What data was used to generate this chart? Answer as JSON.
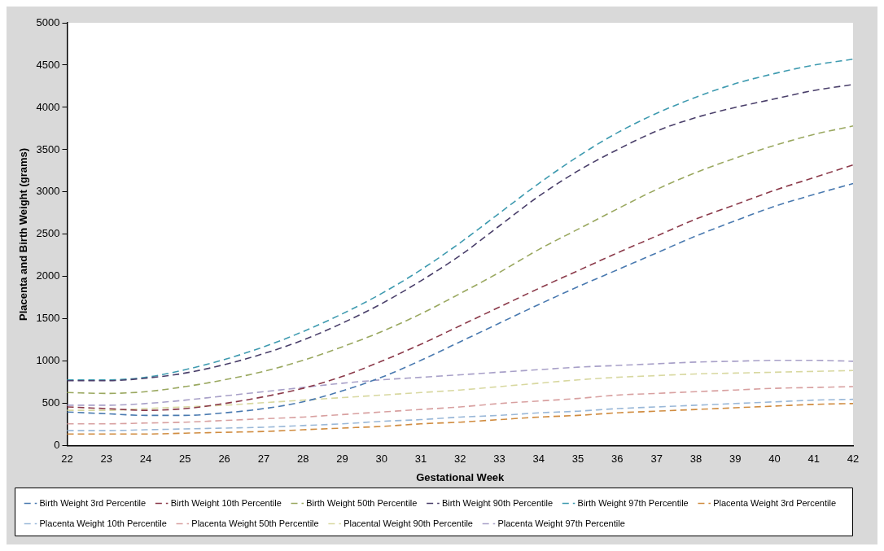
{
  "chart_data": {
    "type": "line",
    "xlabel": "Gestational Week",
    "ylabel": "Placenta and Birth Weight (grams)",
    "categories": [
      "22",
      "23",
      "24",
      "25",
      "26",
      "27",
      "28",
      "29",
      "30",
      "31",
      "32",
      "33",
      "34",
      "35",
      "36",
      "37",
      "38",
      "39",
      "40",
      "41",
      "42"
    ],
    "ylim": [
      0,
      5000
    ],
    "yticks": [
      0,
      500,
      1000,
      1500,
      2000,
      2500,
      3000,
      3500,
      4000,
      4500,
      5000
    ],
    "grid": false,
    "legend": "bottom",
    "marker": "none",
    "line_style": "dashed",
    "series": [
      {
        "name": "Birth Weight 3rd Percentile",
        "color": "#4a7ab0",
        "values": [
          400,
          380,
          360,
          360,
          390,
          440,
          520,
          650,
          810,
          1010,
          1230,
          1450,
          1670,
          1880,
          2080,
          2280,
          2480,
          2660,
          2830,
          2970,
          3100
        ]
      },
      {
        "name": "Birth Weight 10th Percentile",
        "color": "#8b3a4a",
        "values": [
          460,
          440,
          420,
          440,
          500,
          580,
          680,
          820,
          1000,
          1200,
          1420,
          1640,
          1860,
          2070,
          2280,
          2480,
          2680,
          2850,
          3020,
          3170,
          3320
        ]
      },
      {
        "name": "Birth Weight 50th Percentile",
        "color": "#9aa860",
        "values": [
          630,
          620,
          640,
          700,
          780,
          880,
          1010,
          1170,
          1350,
          1560,
          1800,
          2050,
          2320,
          2560,
          2800,
          3030,
          3230,
          3400,
          3550,
          3680,
          3780
        ]
      },
      {
        "name": "Birth Weight 90th Percentile",
        "color": "#4a3f6a",
        "values": [
          770,
          770,
          800,
          860,
          960,
          1090,
          1250,
          1450,
          1680,
          1950,
          2250,
          2600,
          2950,
          3250,
          3500,
          3720,
          3880,
          4000,
          4100,
          4200,
          4270
        ]
      },
      {
        "name": "Birth Weight 97th Percentile",
        "color": "#3f9bb0",
        "values": [
          780,
          780,
          810,
          900,
          1020,
          1170,
          1350,
          1560,
          1800,
          2080,
          2400,
          2750,
          3100,
          3420,
          3700,
          3930,
          4120,
          4280,
          4400,
          4500,
          4570
        ]
      },
      {
        "name": "Placenta Weight 3rd Percentile",
        "color": "#d08c40",
        "values": [
          140,
          140,
          140,
          150,
          160,
          170,
          190,
          210,
          230,
          260,
          280,
          310,
          340,
          360,
          390,
          410,
          430,
          450,
          470,
          490,
          500
        ]
      },
      {
        "name": "Placenta Weight 10th Percentile",
        "color": "#9ab8d8",
        "values": [
          180,
          180,
          190,
          200,
          210,
          220,
          240,
          260,
          290,
          310,
          340,
          360,
          390,
          410,
          440,
          460,
          480,
          500,
          520,
          540,
          550
        ]
      },
      {
        "name": "Placenta Weight 50th Percentile",
        "color": "#d8a0a0",
        "values": [
          260,
          260,
          270,
          280,
          300,
          320,
          340,
          370,
          400,
          430,
          460,
          500,
          530,
          560,
          600,
          620,
          640,
          660,
          680,
          690,
          700
        ]
      },
      {
        "name": "Placental Weight 90th Percentile",
        "color": "#d8d8a0",
        "values": [
          420,
          420,
          440,
          460,
          480,
          510,
          540,
          570,
          600,
          630,
          660,
          700,
          740,
          780,
          810,
          830,
          850,
          860,
          870,
          880,
          890
        ]
      },
      {
        "name": "Placenta Weight 97th Percentile",
        "color": "#a8a0c8",
        "values": [
          480,
          480,
          500,
          540,
          590,
          640,
          690,
          740,
          780,
          810,
          840,
          870,
          900,
          930,
          950,
          970,
          990,
          1000,
          1010,
          1010,
          1000
        ]
      }
    ]
  }
}
